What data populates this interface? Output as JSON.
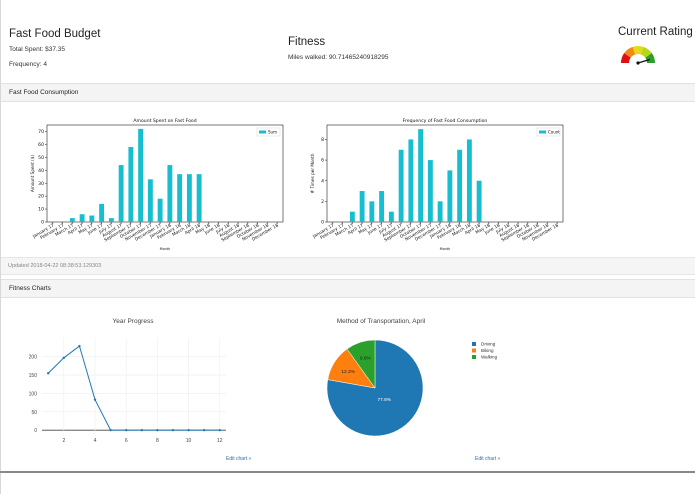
{
  "budget": {
    "title": "Fast Food Budget",
    "total_spent": "Total Spent: $37.35",
    "frequency": "Frequency: 4"
  },
  "fitness": {
    "title": "Fitness",
    "miles": "Miles walked: 90.71465240918295"
  },
  "rating": {
    "title": "Current Rating",
    "gauge_colors": [
      "#e01010",
      "#f08a12",
      "#e8d81a",
      "#b6d61c",
      "#2c9e2c"
    ],
    "needle_level": 0.82
  },
  "fast_food_section": {
    "header": "Fast Food Consumption"
  },
  "updated": "Updated 2018-04-22 08:38:53.129303",
  "fitness_section": {
    "header": "Fitness Charts"
  },
  "edit_links": [
    "Edit chart »",
    "Edit chart »"
  ],
  "months": [
    "January 17",
    "February 17",
    "March 17",
    "April 17",
    "May 17",
    "June 17",
    "July 17",
    "August 17",
    "September 17",
    "October 17",
    "November 17",
    "December 17",
    "January 18",
    "February 18",
    "March 18",
    "April 18",
    "May 18",
    "June 18",
    "July 18",
    "August 18",
    "September 18",
    "October 18",
    "November 18",
    "December 18"
  ],
  "chart_data": [
    {
      "type": "bar",
      "title": "Amount Spent on Fast Food",
      "xlabel": "Month",
      "ylabel": "Amount Spent ($)",
      "legend": "Sum",
      "legend_position": "top-right",
      "color": "#17becf",
      "values": [
        0,
        0,
        3,
        6,
        5,
        14,
        3,
        44,
        58,
        72,
        33,
        18,
        44,
        37,
        37,
        37,
        0,
        0,
        0,
        0,
        0,
        0,
        0,
        0
      ],
      "ylim": [
        0,
        75
      ],
      "yticks": [
        0,
        10,
        20,
        30,
        40,
        50,
        60,
        70
      ]
    },
    {
      "type": "bar",
      "title": "Frequency of Fast Food Consumption",
      "xlabel": "Month",
      "ylabel": "# Times per Month",
      "legend": "Count",
      "legend_position": "top-right",
      "color": "#17becf",
      "values": [
        0,
        0,
        1,
        3,
        2,
        3,
        1,
        7,
        8,
        9,
        6,
        2,
        5,
        7,
        8,
        4,
        0,
        0,
        0,
        0,
        0,
        0,
        0,
        0
      ],
      "ylim": [
        0,
        9.4
      ],
      "yticks": [
        0,
        2,
        4,
        6,
        8
      ]
    },
    {
      "type": "line",
      "title": "Year Progress",
      "color": "#1f77b4",
      "x": [
        1,
        2,
        3,
        4,
        5,
        6,
        7,
        8,
        9,
        10,
        11,
        12
      ],
      "y": [
        155,
        197,
        229,
        83,
        0,
        0,
        0,
        0,
        0,
        0,
        0,
        0
      ],
      "xlim": [
        0.6,
        12.4
      ],
      "ylim": [
        -5,
        240
      ],
      "xticks": [
        2,
        4,
        6,
        8,
        10,
        12
      ],
      "yticks": [
        0,
        50,
        100,
        150,
        200
      ]
    },
    {
      "type": "pie",
      "title": "Method of Transportation, April",
      "labels": [
        "Driving",
        "Biking",
        "Walking"
      ],
      "values": [
        77.8,
        12.3,
        9.9
      ],
      "value_labels": [
        "77.8%",
        "12.3%",
        "9.9%"
      ],
      "colors": [
        "#1f77b4",
        "#ff7f0e",
        "#2ca02c"
      ]
    }
  ]
}
